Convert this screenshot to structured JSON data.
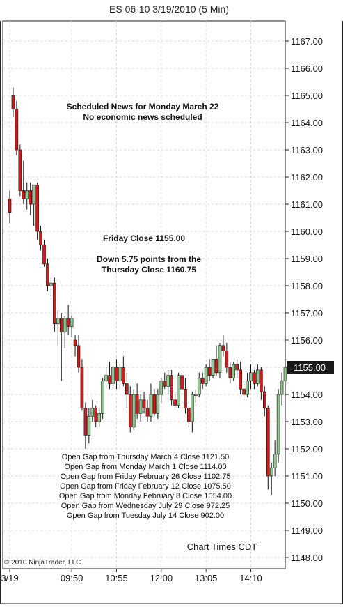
{
  "chart_data": {
    "type": "candlestick",
    "title": "ES 06-10  3/19/2010 (5 Min)",
    "ylim": [
      1147.8,
      1167.6
    ],
    "y_ticks": [
      "1148.00",
      "1149.00",
      "1150.00",
      "1151.00",
      "1152.00",
      "1153.00",
      "1154.00",
      "1155.00",
      "1156.00",
      "1157.00",
      "1158.00",
      "1159.00",
      "1160.00",
      "1161.00",
      "1162.00",
      "1163.00",
      "1164.00",
      "1165.00",
      "1166.00",
      "1167.00"
    ],
    "x_ticks": [
      {
        "label": "3/19",
        "bar": 0
      },
      {
        "label": "09:50",
        "bar": 18
      },
      {
        "label": "10:55",
        "bar": 31
      },
      {
        "label": "12:00",
        "bar": 44
      },
      {
        "label": "13:05",
        "bar": 57
      },
      {
        "label": "14:10",
        "bar": 70
      }
    ],
    "grid": true,
    "up_color": "#90c890",
    "down_color": "#c81e1e",
    "last_price": "1155.00",
    "last_price_value": 1155.0,
    "candles": [
      {
        "o": 1161.2,
        "h": 1161.5,
        "l": 1160.3,
        "c": 1160.7
      },
      {
        "o": 1165.0,
        "h": 1165.3,
        "l": 1164.2,
        "c": 1164.5
      },
      {
        "o": 1164.5,
        "h": 1164.8,
        "l": 1162.8,
        "c": 1163.0
      },
      {
        "o": 1163.0,
        "h": 1163.2,
        "l": 1161.3,
        "c": 1161.5
      },
      {
        "o": 1161.5,
        "h": 1162.6,
        "l": 1161.0,
        "c": 1161.2
      },
      {
        "o": 1161.2,
        "h": 1161.8,
        "l": 1160.8,
        "c": 1161.5
      },
      {
        "o": 1161.5,
        "h": 1161.8,
        "l": 1160.6,
        "c": 1161.0
      },
      {
        "o": 1161.0,
        "h": 1161.7,
        "l": 1160.2,
        "c": 1161.7
      },
      {
        "o": 1161.7,
        "h": 1161.8,
        "l": 1159.7,
        "c": 1160.0
      },
      {
        "o": 1160.0,
        "h": 1160.2,
        "l": 1159.3,
        "c": 1159.5
      },
      {
        "o": 1159.5,
        "h": 1159.7,
        "l": 1158.7,
        "c": 1158.8
      },
      {
        "o": 1158.8,
        "h": 1159.0,
        "l": 1157.8,
        "c": 1158.0
      },
      {
        "o": 1158.0,
        "h": 1158.3,
        "l": 1157.6,
        "c": 1158.1
      },
      {
        "o": 1158.1,
        "h": 1158.3,
        "l": 1156.3,
        "c": 1156.6
      },
      {
        "o": 1156.6,
        "h": 1157.1,
        "l": 1155.8,
        "c": 1156.8
      },
      {
        "o": 1156.8,
        "h": 1157.0,
        "l": 1154.5,
        "c": 1156.3
      },
      {
        "o": 1156.3,
        "h": 1156.9,
        "l": 1155.7,
        "c": 1156.8
      },
      {
        "o": 1156.8,
        "h": 1157.3,
        "l": 1156.2,
        "c": 1156.5
      },
      {
        "o": 1156.5,
        "h": 1156.9,
        "l": 1156.1,
        "c": 1156.8
      },
      {
        "o": 1156.0,
        "h": 1156.2,
        "l": 1155.4,
        "c": 1155.8
      },
      {
        "o": 1155.8,
        "h": 1156.2,
        "l": 1154.8,
        "c": 1155.0
      },
      {
        "o": 1155.0,
        "h": 1155.3,
        "l": 1153.4,
        "c": 1153.5
      },
      {
        "o": 1153.5,
        "h": 1153.7,
        "l": 1152.0,
        "c": 1152.5
      },
      {
        "o": 1152.5,
        "h": 1153.5,
        "l": 1152.2,
        "c": 1153.2
      },
      {
        "o": 1153.2,
        "h": 1153.8,
        "l": 1153.0,
        "c": 1153.5
      },
      {
        "o": 1153.5,
        "h": 1153.6,
        "l": 1152.8,
        "c": 1153.0
      },
      {
        "o": 1153.0,
        "h": 1153.5,
        "l": 1152.8,
        "c": 1153.3
      },
      {
        "o": 1153.3,
        "h": 1154.6,
        "l": 1153.1,
        "c": 1154.5
      },
      {
        "o": 1154.5,
        "h": 1155.0,
        "l": 1154.2,
        "c": 1154.7
      },
      {
        "o": 1154.7,
        "h": 1155.2,
        "l": 1154.2,
        "c": 1154.4
      },
      {
        "o": 1154.4,
        "h": 1155.2,
        "l": 1154.3,
        "c": 1155.0
      },
      {
        "o": 1155.0,
        "h": 1155.3,
        "l": 1154.2,
        "c": 1154.5
      },
      {
        "o": 1154.5,
        "h": 1155.1,
        "l": 1154.2,
        "c": 1155.0
      },
      {
        "o": 1155.0,
        "h": 1155.4,
        "l": 1154.3,
        "c": 1154.4
      },
      {
        "o": 1154.4,
        "h": 1154.8,
        "l": 1153.5,
        "c": 1154.0
      },
      {
        "o": 1154.0,
        "h": 1154.3,
        "l": 1152.6,
        "c": 1152.8
      },
      {
        "o": 1152.8,
        "h": 1154.2,
        "l": 1152.7,
        "c": 1154.0
      },
      {
        "o": 1154.0,
        "h": 1154.4,
        "l": 1153.1,
        "c": 1153.3
      },
      {
        "o": 1153.3,
        "h": 1154.0,
        "l": 1153.0,
        "c": 1153.8
      },
      {
        "o": 1153.8,
        "h": 1154.1,
        "l": 1153.3,
        "c": 1153.5
      },
      {
        "o": 1153.5,
        "h": 1153.8,
        "l": 1153.0,
        "c": 1153.2
      },
      {
        "o": 1153.2,
        "h": 1154.4,
        "l": 1153.0,
        "c": 1154.0
      },
      {
        "o": 1154.0,
        "h": 1154.2,
        "l": 1153.2,
        "c": 1153.3
      },
      {
        "o": 1153.3,
        "h": 1154.2,
        "l": 1153.1,
        "c": 1154.0
      },
      {
        "o": 1154.0,
        "h": 1154.6,
        "l": 1153.7,
        "c": 1154.5
      },
      {
        "o": 1154.5,
        "h": 1154.8,
        "l": 1154.2,
        "c": 1154.3
      },
      {
        "o": 1154.3,
        "h": 1154.9,
        "l": 1154.0,
        "c": 1154.7
      },
      {
        "o": 1154.7,
        "h": 1154.9,
        "l": 1153.6,
        "c": 1153.8
      },
      {
        "o": 1153.8,
        "h": 1154.1,
        "l": 1153.5,
        "c": 1153.6
      },
      {
        "o": 1153.6,
        "h": 1154.8,
        "l": 1153.5,
        "c": 1154.7
      },
      {
        "o": 1154.7,
        "h": 1154.8,
        "l": 1154.0,
        "c": 1154.2
      },
      {
        "o": 1154.2,
        "h": 1154.6,
        "l": 1153.3,
        "c": 1153.5
      },
      {
        "o": 1153.5,
        "h": 1153.6,
        "l": 1152.8,
        "c": 1153.0
      },
      {
        "o": 1153.0,
        "h": 1154.1,
        "l": 1152.6,
        "c": 1154.0
      },
      {
        "o": 1154.0,
        "h": 1154.2,
        "l": 1153.7,
        "c": 1154.0
      },
      {
        "o": 1154.0,
        "h": 1154.8,
        "l": 1153.9,
        "c": 1154.6
      },
      {
        "o": 1154.6,
        "h": 1154.8,
        "l": 1154.2,
        "c": 1154.4
      },
      {
        "o": 1154.4,
        "h": 1155.1,
        "l": 1154.3,
        "c": 1155.0
      },
      {
        "o": 1155.0,
        "h": 1155.3,
        "l": 1154.5,
        "c": 1154.7
      },
      {
        "o": 1154.7,
        "h": 1155.3,
        "l": 1154.6,
        "c": 1155.3
      },
      {
        "o": 1155.3,
        "h": 1155.8,
        "l": 1154.7,
        "c": 1154.8
      },
      {
        "o": 1154.8,
        "h": 1155.9,
        "l": 1154.6,
        "c": 1155.8
      },
      {
        "o": 1155.8,
        "h": 1156.2,
        "l": 1155.4,
        "c": 1155.6
      },
      {
        "o": 1155.6,
        "h": 1155.9,
        "l": 1154.8,
        "c": 1155.0
      },
      {
        "o": 1155.0,
        "h": 1155.2,
        "l": 1154.4,
        "c": 1154.6
      },
      {
        "o": 1154.6,
        "h": 1155.2,
        "l": 1154.5,
        "c": 1155.1
      },
      {
        "o": 1155.1,
        "h": 1155.3,
        "l": 1154.6,
        "c": 1154.9
      },
      {
        "o": 1154.9,
        "h": 1155.2,
        "l": 1154.0,
        "c": 1154.2
      },
      {
        "o": 1154.2,
        "h": 1154.4,
        "l": 1153.8,
        "c": 1154.0
      },
      {
        "o": 1154.0,
        "h": 1154.8,
        "l": 1153.9,
        "c": 1154.5
      },
      {
        "o": 1154.5,
        "h": 1155.1,
        "l": 1154.2,
        "c": 1154.8
      },
      {
        "o": 1154.8,
        "h": 1154.9,
        "l": 1154.2,
        "c": 1154.4
      },
      {
        "o": 1154.4,
        "h": 1155.1,
        "l": 1154.3,
        "c": 1154.9
      },
      {
        "o": 1154.9,
        "h": 1155.0,
        "l": 1153.8,
        "c": 1154.1
      },
      {
        "o": 1154.1,
        "h": 1154.3,
        "l": 1153.2,
        "c": 1153.5
      },
      {
        "o": 1153.5,
        "h": 1153.6,
        "l": 1150.5,
        "c": 1151.0
      },
      {
        "o": 1151.0,
        "h": 1151.5,
        "l": 1150.3,
        "c": 1151.3
      },
      {
        "o": 1151.3,
        "h": 1152.3,
        "l": 1151.0,
        "c": 1151.8
      },
      {
        "o": 1151.8,
        "h": 1154.2,
        "l": 1151.5,
        "c": 1154.0
      },
      {
        "o": 1154.0,
        "h": 1154.8,
        "l": 1153.6,
        "c": 1154.5
      },
      {
        "o": 1154.5,
        "h": 1155.5,
        "l": 1154.2,
        "c": 1155.0
      }
    ],
    "annotations": {
      "news_line1": "Scheduled News for Monday March 22",
      "news_line2": "No economic news scheduled",
      "friday_close": "Friday Close 1155.00",
      "down_line1": "Down 5.75 points from the",
      "down_line2": "Thursday Close 1160.75",
      "gaps": [
        "Open Gap from Thursday March 4 Close 1121.50",
        "Open Gap from Monday March 1 Close 1114.00",
        "Open Gap from Friday February 26 Close 1102.75",
        "Open Gap from Friday February 12 Close 1075.50",
        "Open Gap from Monday February 8 Close 1054.00",
        "Open Gap from Wednesday July 29 Close 972.25",
        "Open Gap from Tuesday July 14 Close 902.00"
      ],
      "chart_times": "Chart Times CDT",
      "copyright": "© 2010 NinjaTrader, LLC"
    }
  }
}
